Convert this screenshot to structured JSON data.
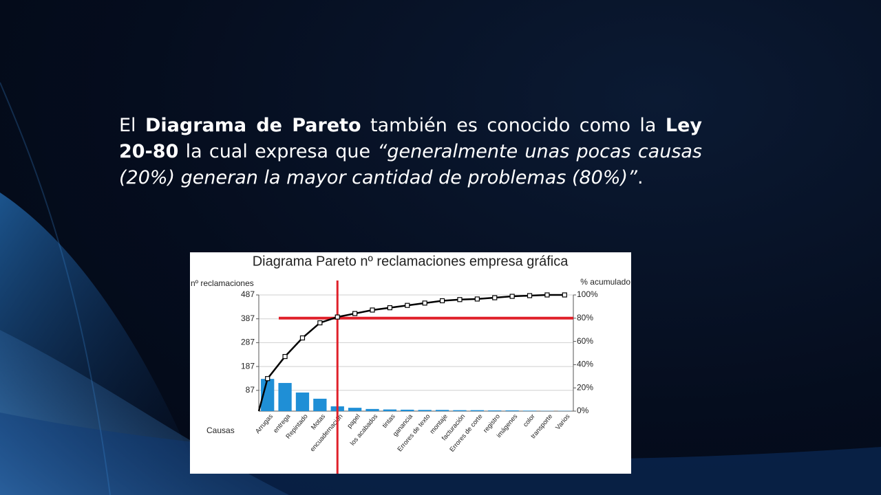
{
  "slide": {
    "paragraph": [
      {
        "text": "El ",
        "style": "normal"
      },
      {
        "text": "Diagrama de Pareto",
        "style": "bold"
      },
      {
        "text": " también es conocido como la ",
        "style": "normal"
      },
      {
        "text": "Ley 20-80",
        "style": "bold"
      },
      {
        "text": " la cual expresa que ",
        "style": "normal"
      },
      {
        "text": "“generalmente unas pocas causas (20%) generan la mayor cantidad de problemas (80%)”",
        "style": "italic"
      },
      {
        "text": ".",
        "style": "normal"
      }
    ]
  },
  "chart_data": {
    "type": "pareto",
    "title": "Diagrama Pareto nº reclamaciones empresa gráfica",
    "y_label": "nº reclamaciones",
    "y2_label": "% acumulado",
    "x_label": "Causas",
    "categories": [
      "Arrugas",
      "entrega",
      "Repintado",
      "Motas",
      "encuadernación",
      "papel",
      "los acabados",
      "tintas",
      "ganancia",
      "Errores de texto",
      "montaje",
      "facturación",
      "Errores de corte",
      "registro",
      "imágenes",
      "color",
      "transporte",
      "Varios"
    ],
    "series": [
      {
        "name": "nº reclamaciones",
        "color": "#1f8fd6",
        "values": [
          135,
          118,
          78,
          52,
          20,
          14,
          9,
          7,
          6,
          5,
          5,
          4,
          4,
          3,
          3,
          2,
          1,
          1
        ]
      },
      {
        "name": "% acumulado",
        "color": "#000000",
        "axis": "y2",
        "values": [
          28,
          47,
          63,
          76,
          81,
          84,
          87,
          89,
          91,
          93,
          95,
          96,
          96.5,
          97.6,
          98.8,
          99.4,
          100,
          100
        ]
      }
    ],
    "ylim": [
      0,
      487
    ],
    "yticks": [
      87,
      187,
      287,
      387,
      487
    ],
    "y2lim": [
      0,
      100
    ],
    "y2ticks": [
      {
        "value": 0,
        "label": "0%"
      },
      {
        "value": 20,
        "label": "20%"
      },
      {
        "value": 40,
        "label": "40%"
      },
      {
        "value": 60,
        "label": "60%"
      },
      {
        "value": 80,
        "label": "80%"
      },
      {
        "value": 100,
        "label": "100%"
      }
    ],
    "grid": true,
    "reference_lines": {
      "y2": 80,
      "category": "encuadernación",
      "color": "#e0202a"
    }
  }
}
